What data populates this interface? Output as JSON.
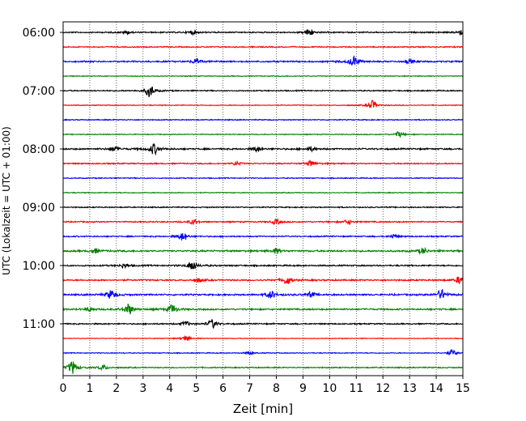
{
  "chart_data": {
    "type": "line",
    "title": "",
    "xlabel": "Zeit  [min]",
    "ylabel": "UTC (Lokalzeit = UTC + 01:00)",
    "xlim": [
      0,
      15
    ],
    "x_ticks": [
      "0",
      "1",
      "2",
      "3",
      "4",
      "5",
      "6",
      "7",
      "8",
      "9",
      "10",
      "11",
      "12",
      "13",
      "14",
      "15"
    ],
    "y_ticks": [
      "06:00",
      "07:00",
      "08:00",
      "09:00",
      "10:00",
      "11:00"
    ],
    "grid": "vertical dotted",
    "trace_minutes": 15,
    "colors": [
      "#000000",
      "#ff0000",
      "#0000ff",
      "#008000"
    ],
    "traces": [
      {
        "start": "06:00",
        "noise": 0.45,
        "events": [
          [
            9.25,
            2.2
          ],
          [
            4.85,
            1.2
          ],
          [
            2.4,
            1.0
          ],
          [
            14.9,
            1.5
          ]
        ]
      },
      {
        "start": "06:15",
        "noise": 0.4,
        "events": []
      },
      {
        "start": "06:30",
        "noise": 0.55,
        "events": [
          [
            10.9,
            3.2
          ],
          [
            5.0,
            1.5
          ],
          [
            13.0,
            1.0
          ]
        ]
      },
      {
        "start": "06:45",
        "noise": 0.3,
        "events": []
      },
      {
        "start": "07:00",
        "noise": 0.4,
        "events": [
          [
            3.25,
            3.8
          ]
        ]
      },
      {
        "start": "07:15",
        "noise": 0.3,
        "events": [
          [
            11.6,
            2.8
          ]
        ]
      },
      {
        "start": "07:30",
        "noise": 0.35,
        "events": []
      },
      {
        "start": "07:45",
        "noise": 0.3,
        "events": [
          [
            12.6,
            1.6
          ]
        ]
      },
      {
        "start": "08:00",
        "noise": 0.55,
        "events": [
          [
            3.4,
            3.3
          ],
          [
            1.9,
            1.4
          ],
          [
            7.3,
            1.5
          ],
          [
            9.3,
            1.3
          ]
        ]
      },
      {
        "start": "08:15",
        "noise": 0.45,
        "events": [
          [
            9.3,
            1.8
          ],
          [
            6.5,
            1.0
          ]
        ]
      },
      {
        "start": "08:30",
        "noise": 0.35,
        "events": []
      },
      {
        "start": "08:45",
        "noise": 0.3,
        "events": []
      },
      {
        "start": "09:00",
        "noise": 0.4,
        "events": []
      },
      {
        "start": "09:15",
        "noise": 0.45,
        "events": [
          [
            8.0,
            1.5
          ],
          [
            4.9,
            1.5
          ],
          [
            10.7,
            1.3
          ]
        ]
      },
      {
        "start": "09:30",
        "noise": 0.45,
        "events": [
          [
            4.5,
            2.6
          ],
          [
            12.4,
            1.2
          ]
        ]
      },
      {
        "start": "09:45",
        "noise": 0.6,
        "events": [
          [
            8.0,
            1.5
          ],
          [
            1.2,
            1.3
          ],
          [
            13.5,
            1.8
          ]
        ]
      },
      {
        "start": "10:00",
        "noise": 0.5,
        "events": [
          [
            4.85,
            3.2
          ],
          [
            2.3,
            1.3
          ]
        ]
      },
      {
        "start": "10:15",
        "noise": 0.55,
        "events": [
          [
            8.4,
            2.6
          ],
          [
            14.9,
            2.4
          ],
          [
            5.1,
            1.2
          ]
        ]
      },
      {
        "start": "10:30",
        "noise": 0.55,
        "events": [
          [
            1.8,
            2.8
          ],
          [
            7.8,
            2.4
          ],
          [
            14.2,
            3.0
          ],
          [
            9.3,
            1.5
          ]
        ]
      },
      {
        "start": "10:45",
        "noise": 0.55,
        "events": [
          [
            2.45,
            3.4
          ],
          [
            4.1,
            2.8
          ],
          [
            1.0,
            1.2
          ]
        ]
      },
      {
        "start": "11:00",
        "noise": 0.45,
        "events": [
          [
            5.6,
            2.6
          ],
          [
            4.6,
            1.3
          ]
        ]
      },
      {
        "start": "11:15",
        "noise": 0.25,
        "events": [
          [
            4.6,
            1.8
          ]
        ]
      },
      {
        "start": "11:30",
        "noise": 0.3,
        "events": [
          [
            14.6,
            2.0
          ],
          [
            7.0,
            0.8
          ]
        ]
      },
      {
        "start": "11:45",
        "noise": 0.4,
        "events": [
          [
            0.35,
            4.0
          ],
          [
            1.5,
            1.5
          ]
        ]
      }
    ]
  }
}
